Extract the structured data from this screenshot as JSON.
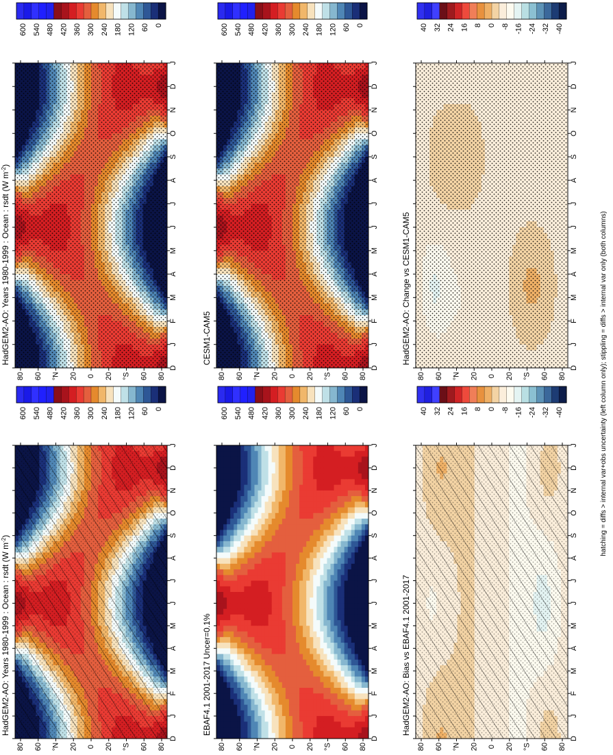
{
  "figure_note": "hatching = diffs > internal var+obs uncertainty (left column only); stippling = diffs > internal var only (both columns)",
  "palettes": {
    "abs": [
      "#1414a0",
      "#0a1e6e",
      "#1f3f8e",
      "#3f6fa8",
      "#6e9ec4",
      "#9fc8db",
      "#cfe8ee",
      "#f4fbfb",
      "#f7e3bf",
      "#f0b76a",
      "#e68a2c",
      "#d96a20",
      "#f0665a",
      "#e83a32",
      "#d41e20",
      "#b3141c",
      "#8e0f18",
      "#2020f0",
      "#3030ff",
      "#1010d0"
    ],
    "diff": [
      "#2020e0",
      "#4040ff",
      "#6b0f17",
      "#9e1a1e",
      "#d02426",
      "#ee4a3c",
      "#f07e58",
      "#e8913e",
      "#efb066",
      "#f3d3a4",
      "#fbeedb",
      "#fdfbf0",
      "#e4f4f3",
      "#b9dfe3",
      "#8bc0d2",
      "#5d93b7",
      "#3b689b",
      "#1d3c74",
      "#0d1d4a"
    ]
  },
  "chart_data": [
    {
      "type": "heatmap",
      "title": "HadGEM2-AO: Years 1980-1999 : Ocean : rsdt (W m",
      "title_sup": "-2",
      "title_end": ")",
      "field": "rsdt",
      "x_ticks": [
        "D",
        "J",
        "F",
        "M",
        "A",
        "M",
        "J",
        "J",
        "A",
        "S",
        "O",
        "N",
        "D",
        "J"
      ],
      "y_ticks": [
        "80",
        "60",
        "°N",
        "20",
        "0",
        "20",
        "°S",
        "60",
        "80"
      ],
      "colorbar_labels": [
        "600",
        "540",
        "480",
        "420",
        "360",
        "300",
        "240",
        "180",
        "120",
        "60",
        "0"
      ],
      "palette": "abs",
      "overlay": "hatch",
      "contour_levels": [
        0,
        600
      ]
    },
    {
      "type": "heatmap",
      "title": "HadGEM2-AO: Years 1980-1999 : Ocean : rsdt (W m",
      "title_sup": "-2",
      "title_end": ")",
      "field": "rsdt",
      "x_ticks": [
        "D",
        "J",
        "F",
        "M",
        "A",
        "M",
        "J",
        "J",
        "A",
        "S",
        "O",
        "N",
        "D",
        "J"
      ],
      "y_ticks": [
        "80",
        "60",
        "°N",
        "20",
        "0",
        "20",
        "°S",
        "60",
        "80"
      ],
      "colorbar_labels": [
        "600",
        "540",
        "480",
        "420",
        "360",
        "300",
        "240",
        "180",
        "120",
        "60",
        "0"
      ],
      "palette": "abs",
      "overlay": "stipple",
      "contour_levels": [
        0,
        600
      ]
    },
    {
      "type": "heatmap",
      "title": "EBAF4.1 2001-2017 Uncer=0.1%",
      "title_sup": "",
      "title_end": "",
      "field": "rsdt",
      "x_ticks": [
        "D",
        "J",
        "F",
        "M",
        "A",
        "M",
        "J",
        "J",
        "A",
        "S",
        "O",
        "N",
        "D",
        "J"
      ],
      "y_ticks": [
        "80",
        "60",
        "°N",
        "20",
        "0",
        "20",
        "°S",
        "60",
        "80"
      ],
      "colorbar_labels": [
        "600",
        "540",
        "480",
        "420",
        "360",
        "300",
        "240",
        "180",
        "120",
        "60",
        "0"
      ],
      "palette": "abs",
      "overlay": "stipple",
      "contour_levels": [
        0,
        600
      ]
    },
    {
      "type": "heatmap",
      "title": "CESM1-CAM5",
      "title_sup": "",
      "title_end": "",
      "field": "rsdt",
      "x_ticks": [
        "D",
        "J",
        "F",
        "M",
        "A",
        "M",
        "J",
        "J",
        "A",
        "S",
        "O",
        "N",
        "D",
        "J"
      ],
      "y_ticks": [
        "80",
        "60",
        "°N",
        "20",
        "0",
        "20",
        "°S",
        "60",
        "80"
      ],
      "colorbar_labels": [
        "600",
        "540",
        "480",
        "420",
        "360",
        "300",
        "240",
        "180",
        "120",
        "60",
        "0"
      ],
      "palette": "abs",
      "overlay": "stipple",
      "contour_levels": [
        0,
        600
      ]
    },
    {
      "type": "heatmap",
      "title": "HadGEM2-AO: Bias vs EBAF4.1 2001-2017",
      "title_sup": "",
      "title_end": "",
      "field": "diff-obs",
      "x_ticks": [
        "D",
        "J",
        "F",
        "M",
        "A",
        "M",
        "J",
        "J",
        "A",
        "S",
        "O",
        "N",
        "D",
        "J"
      ],
      "y_ticks": [
        "80",
        "60",
        "°N",
        "20",
        "0",
        "20",
        "°S",
        "60",
        "80"
      ],
      "colorbar_labels": [
        "40",
        "32",
        "24",
        "16",
        "8",
        "0",
        "-8",
        "-16",
        "-24",
        "-32",
        "-40"
      ],
      "palette": "diff",
      "overlay": "hatch",
      "contour_levels": [
        -40,
        40
      ]
    },
    {
      "type": "heatmap",
      "title": "HadGEM2-AO: Change vs CESM1-CAM5",
      "title_sup": "",
      "title_end": "",
      "field": "diff-model",
      "x_ticks": [
        "D",
        "J",
        "F",
        "M",
        "A",
        "M",
        "J",
        "J",
        "A",
        "S",
        "O",
        "N",
        "D",
        "J"
      ],
      "y_ticks": [
        "80",
        "60",
        "°N",
        "20",
        "0",
        "20",
        "°S",
        "60",
        "80"
      ],
      "colorbar_labels": [
        "40",
        "32",
        "24",
        "16",
        "8",
        "0",
        "-8",
        "-16",
        "-24",
        "-32",
        "-40"
      ],
      "palette": "diff",
      "overlay": "stipple",
      "contour_levels": [
        -40,
        40
      ]
    }
  ]
}
